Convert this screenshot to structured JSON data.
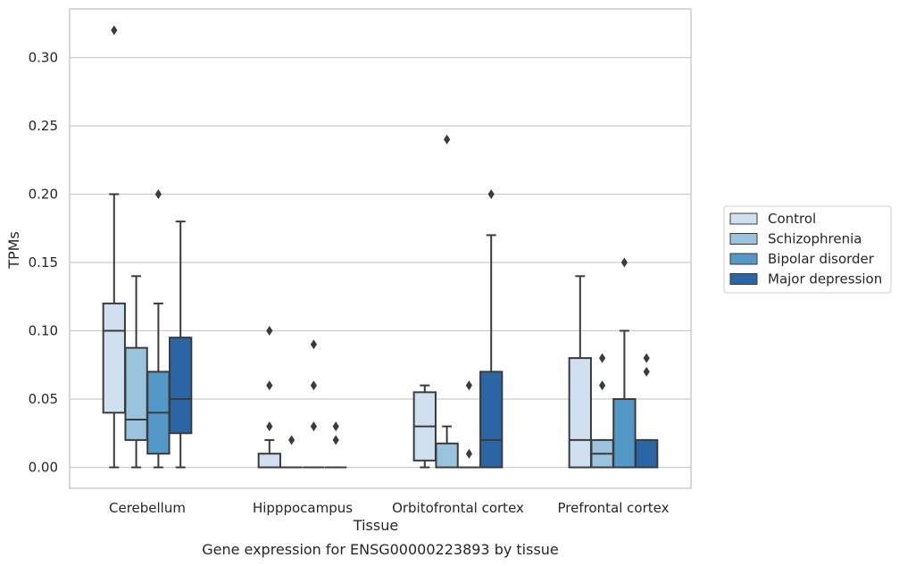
{
  "chart_data": {
    "type": "box",
    "xlabel": "Tissue",
    "ylabel": "TPMs",
    "caption": "Gene expression for ENSG00000223893 by tissue",
    "ylim": [
      -0.016,
      0.335
    ],
    "yticks": [
      0.0,
      0.05,
      0.1,
      0.15,
      0.2,
      0.25,
      0.3
    ],
    "ytick_labels": [
      "0.00",
      "0.05",
      "0.10",
      "0.15",
      "0.20",
      "0.25",
      "0.30"
    ],
    "grid": "horizontal",
    "legend_position": "right",
    "categories": [
      "Cerebellum",
      "Hipppocampus",
      "Orbitofrontal cortex",
      "Prefrontal cortex"
    ],
    "series": [
      {
        "name": "Control",
        "color": "#d0e0f0",
        "boxes": [
          {
            "whislo": 0.0,
            "q1": 0.04,
            "med": 0.1,
            "q3": 0.12,
            "whishi": 0.2,
            "fliers": [
              0.32
            ]
          },
          {
            "whislo": 0.0,
            "q1": 0.0,
            "med": 0.0,
            "q3": 0.01,
            "whishi": 0.02,
            "fliers": [
              0.03,
              0.06,
              0.1
            ]
          },
          {
            "whislo": 0.0,
            "q1": 0.005,
            "med": 0.03,
            "q3": 0.055,
            "whishi": 0.06,
            "fliers": []
          },
          {
            "whislo": 0.0,
            "q1": 0.0,
            "med": 0.02,
            "q3": 0.08,
            "whishi": 0.14,
            "fliers": []
          }
        ]
      },
      {
        "name": "Schizophrenia",
        "color": "#9ac3dd",
        "boxes": [
          {
            "whislo": 0.0,
            "q1": 0.02,
            "med": 0.035,
            "q3": 0.0875,
            "whishi": 0.14,
            "fliers": []
          },
          {
            "whislo": 0.0,
            "q1": 0.0,
            "med": 0.0,
            "q3": 0.0,
            "whishi": 0.0,
            "fliers": [
              0.02
            ]
          },
          {
            "whislo": 0.0,
            "q1": 0.0,
            "med": 0.0,
            "q3": 0.0175,
            "whishi": 0.03,
            "fliers": [
              0.24
            ]
          },
          {
            "whislo": 0.0,
            "q1": 0.0,
            "med": 0.01,
            "q3": 0.02,
            "whishi": 0.02,
            "fliers": [
              0.06,
              0.08
            ]
          }
        ]
      },
      {
        "name": "Bipolar disorder",
        "color": "#5498c7",
        "boxes": [
          {
            "whislo": 0.0,
            "q1": 0.01,
            "med": 0.04,
            "q3": 0.07,
            "whishi": 0.12,
            "fliers": [
              0.2
            ]
          },
          {
            "whislo": 0.0,
            "q1": 0.0,
            "med": 0.0,
            "q3": 0.0,
            "whishi": 0.0,
            "fliers": [
              0.03,
              0.06,
              0.09
            ]
          },
          {
            "whislo": 0.0,
            "q1": 0.0,
            "med": 0.0,
            "q3": 0.0,
            "whishi": 0.0,
            "fliers": [
              0.01,
              0.06
            ]
          },
          {
            "whislo": 0.0,
            "q1": 0.0,
            "med": 0.0,
            "q3": 0.05,
            "whishi": 0.1,
            "fliers": [
              0.15
            ]
          }
        ]
      },
      {
        "name": "Major depression",
        "color": "#2a66a5",
        "boxes": [
          {
            "whislo": 0.0,
            "q1": 0.025,
            "med": 0.05,
            "q3": 0.095,
            "whishi": 0.18,
            "fliers": []
          },
          {
            "whislo": 0.0,
            "q1": 0.0,
            "med": 0.0,
            "q3": 0.0,
            "whishi": 0.0,
            "fliers": [
              0.02,
              0.03
            ]
          },
          {
            "whislo": 0.0,
            "q1": 0.0,
            "med": 0.02,
            "q3": 0.07,
            "whishi": 0.17,
            "fliers": [
              0.2
            ]
          },
          {
            "whislo": 0.0,
            "q1": 0.0,
            "med": 0.0,
            "q3": 0.02,
            "whishi": 0.02,
            "fliers": [
              0.07,
              0.08
            ]
          }
        ]
      }
    ]
  }
}
